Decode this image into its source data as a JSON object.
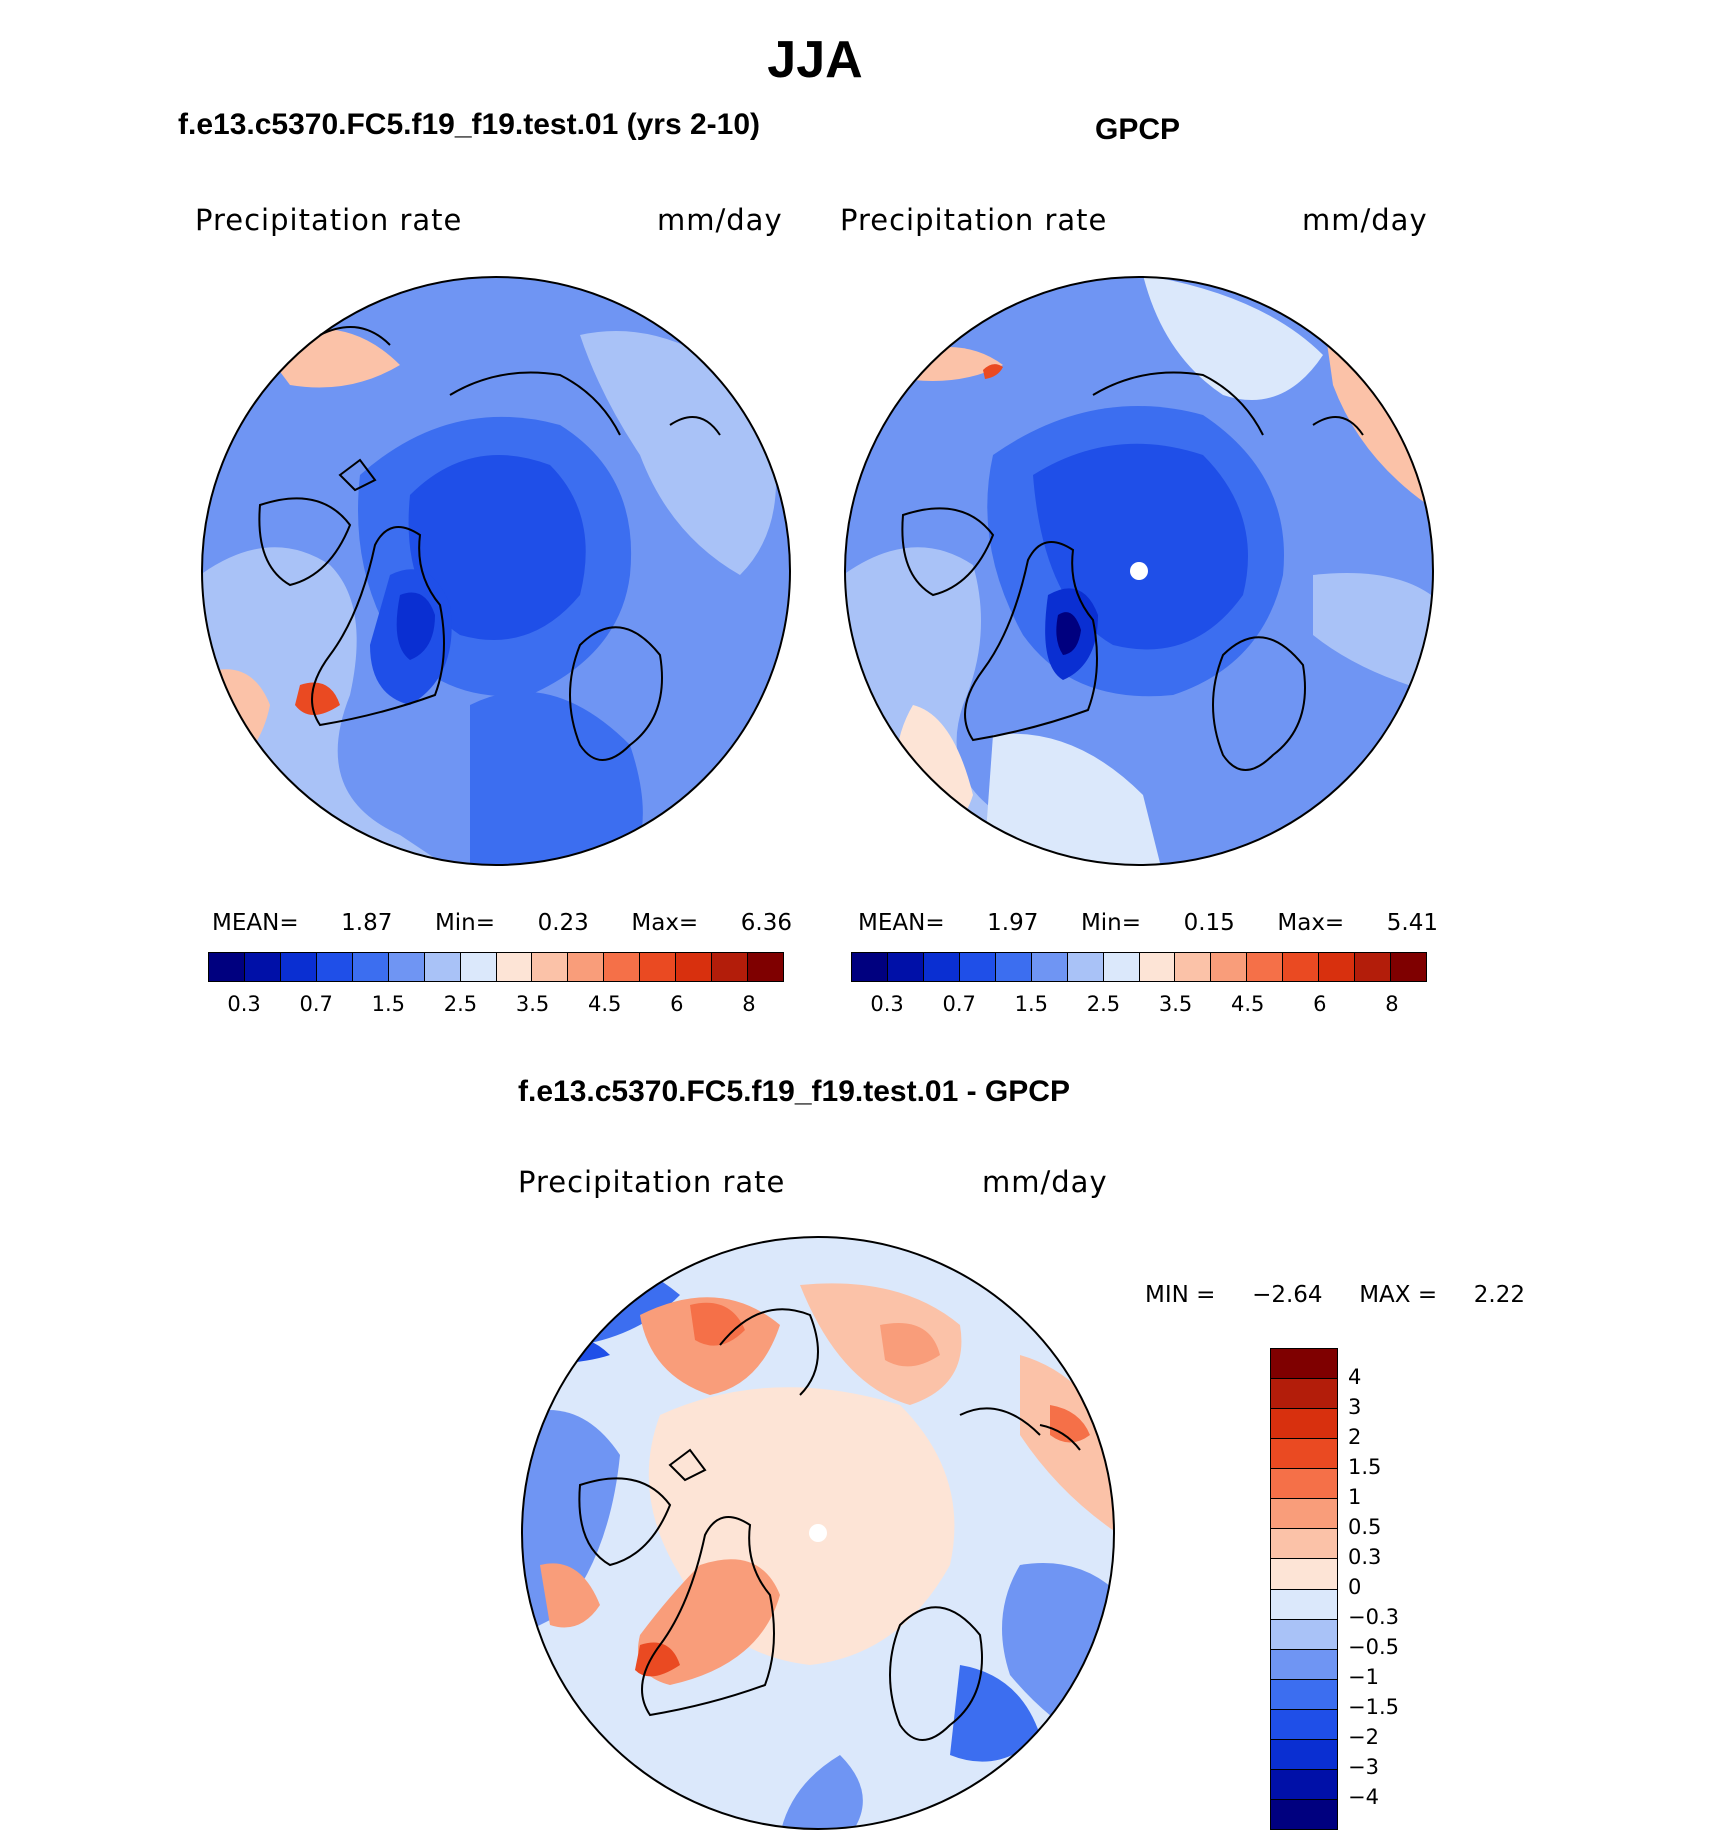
{
  "figure": {
    "season": "JJA",
    "units": "mm/day",
    "variable": "Precipitation rate"
  },
  "panels": [
    {
      "id": "model",
      "title": "f.e13.c5370.FC5.f19_f19.test.01 (yrs 2-10)",
      "var_label": "Precipitation rate",
      "unit_label": "mm/day",
      "stats": {
        "mean_label": "MEAN=",
        "mean": "1.87",
        "min_label": "Min=",
        "min": "0.23",
        "max_label": "Max=",
        "max": "6.36"
      }
    },
    {
      "id": "obs",
      "title": "GPCP",
      "var_label": "Precipitation rate",
      "unit_label": "mm/day",
      "stats": {
        "mean_label": "MEAN=",
        "mean": "1.97",
        "min_label": "Min=",
        "min": "0.15",
        "max_label": "Max=",
        "max": "5.41"
      }
    },
    {
      "id": "diff",
      "title": "f.e13.c5370.FC5.f19_f19.test.01 - GPCP",
      "var_label": "Precipitation rate",
      "unit_label": "mm/day",
      "stats": {
        "min_label": "MIN =",
        "min": "−2.64",
        "max_label": "MAX =",
        "max": "2.22"
      }
    }
  ],
  "colorbar_abs": {
    "colors": [
      "#00007f",
      "#0010a8",
      "#0a2fd2",
      "#1f4fe8",
      "#3c6ef0",
      "#6f95f3",
      "#a9c2f7",
      "#dbe8fb",
      "#fde4d6",
      "#fbc2a8",
      "#f99d7a",
      "#f57048",
      "#ea4a22",
      "#d8300e",
      "#b31d0a",
      "#7f0000"
    ],
    "tick_labels": [
      "0.3",
      "0.7",
      "1.5",
      "2.5",
      "3.5",
      "4.5",
      "6",
      "8"
    ]
  },
  "colorbar_diff": {
    "colors_top_to_bottom": [
      "#7f0000",
      "#b31d0a",
      "#d8300e",
      "#ea4a22",
      "#f57048",
      "#f99d7a",
      "#fbc2a8",
      "#fde4d6",
      "#dbe8fb",
      "#a9c2f7",
      "#6f95f3",
      "#3c6ef0",
      "#1f4fe8",
      "#0a2fd2",
      "#0010a8",
      "#00007f"
    ],
    "tick_labels": [
      "4",
      "3",
      "2",
      "1.5",
      "1",
      "0.5",
      "0.3",
      "0",
      "−0.3",
      "−0.5",
      "−1",
      "−1.5",
      "−2",
      "−3",
      "−4"
    ]
  }
}
